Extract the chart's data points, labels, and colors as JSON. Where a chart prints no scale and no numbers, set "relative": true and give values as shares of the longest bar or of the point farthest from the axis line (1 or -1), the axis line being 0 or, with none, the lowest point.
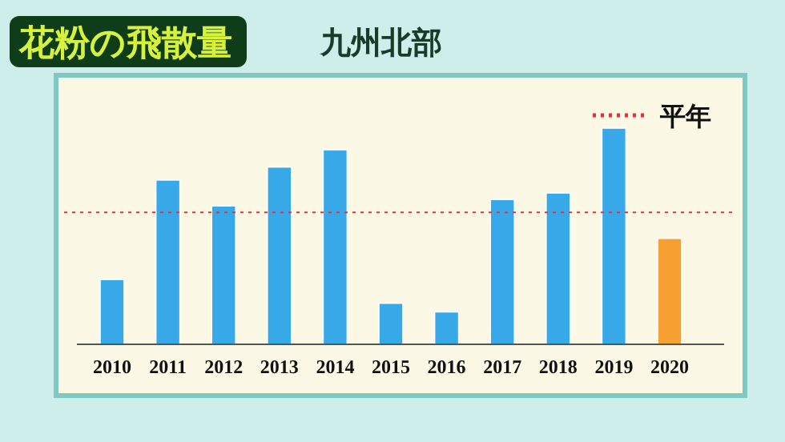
{
  "chart_data": {
    "type": "bar",
    "title": "花粉の飛散量",
    "subtitle": "九州北部",
    "categories": [
      "2010",
      "2011",
      "2012",
      "2013",
      "2014",
      "2015",
      "2016",
      "2017",
      "2018",
      "2019",
      "2020"
    ],
    "values": [
      0.3,
      0.76,
      0.64,
      0.82,
      0.9,
      0.19,
      0.15,
      0.67,
      0.7,
      1,
      0.49
    ],
    "colors": [
      "#38a9e8",
      "#38a9e8",
      "#38a9e8",
      "#38a9e8",
      "#38a9e8",
      "#38a9e8",
      "#38a9e8",
      "#38a9e8",
      "#38a9e8",
      "#38a9e8",
      "#f5a030"
    ],
    "relative": true,
    "ref_lines": [
      {
        "axis": "y",
        "value": 0.61,
        "label": "平年",
        "color": "#e8303a",
        "line_style": "dotted"
      }
    ]
  }
}
